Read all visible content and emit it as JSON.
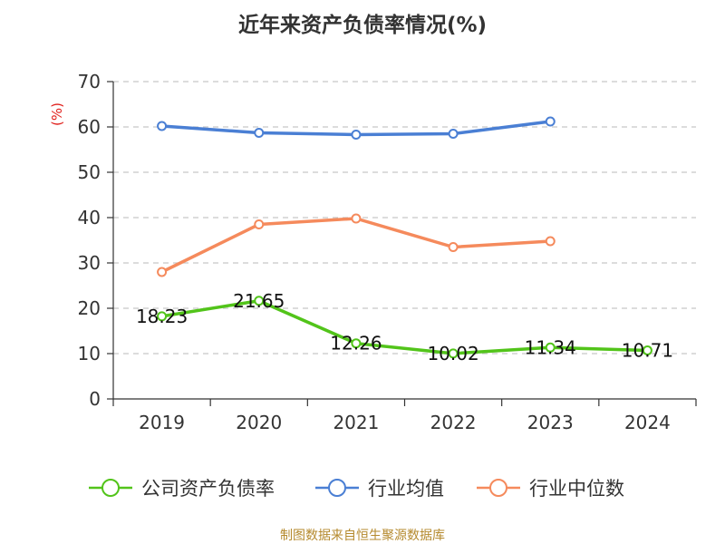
{
  "title": "近年来资产负债率情况(%)",
  "source": "制图数据来自恒生聚源数据库",
  "chart_data": {
    "type": "line",
    "title": "近年来资产负债率情况(%)",
    "ylabel": "(%)",
    "xlabel": "",
    "categories": [
      "2019",
      "2020",
      "2021",
      "2022",
      "2023",
      "2024"
    ],
    "ylim": [
      0,
      70
    ],
    "yticks": [
      0,
      10,
      20,
      30,
      40,
      50,
      60,
      70
    ],
    "grid": true,
    "legend_position": "bottom",
    "series": [
      {
        "name": "公司资产负债率",
        "color": "#52c41a",
        "values": [
          18.23,
          21.65,
          12.26,
          10.02,
          11.34,
          10.71
        ],
        "labels": [
          "18.23",
          "21.65",
          "12.26",
          "10.02",
          "11.34",
          "10.71"
        ]
      },
      {
        "name": "行业均值",
        "color": "#4a7fd4",
        "values": [
          60.2,
          58.7,
          58.3,
          58.5,
          61.2,
          null
        ]
      },
      {
        "name": "行业中位数",
        "color": "#f58a5c",
        "values": [
          28.0,
          38.5,
          39.8,
          33.5,
          34.8,
          null
        ]
      }
    ]
  }
}
